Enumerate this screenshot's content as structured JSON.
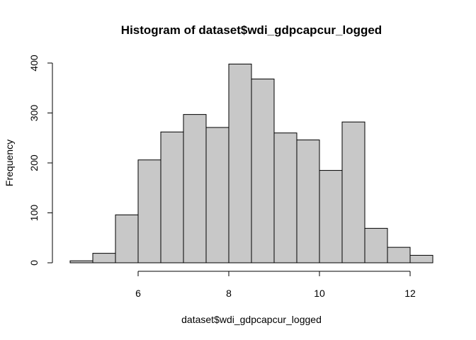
{
  "chart_data": {
    "type": "bar",
    "title": "Histogram of dataset$wdi_gdpcapcur_logged",
    "xlabel": "dataset$wdi_gdpcapcur_logged",
    "ylabel": "Frequency",
    "bins": [
      {
        "start": 4.5,
        "end": 5.0,
        "count": 4
      },
      {
        "start": 5.0,
        "end": 5.5,
        "count": 19
      },
      {
        "start": 5.5,
        "end": 6.0,
        "count": 96
      },
      {
        "start": 6.0,
        "end": 6.5,
        "count": 206
      },
      {
        "start": 6.5,
        "end": 7.0,
        "count": 262
      },
      {
        "start": 7.0,
        "end": 7.5,
        "count": 297
      },
      {
        "start": 7.5,
        "end": 8.0,
        "count": 271
      },
      {
        "start": 8.0,
        "end": 8.5,
        "count": 398
      },
      {
        "start": 8.5,
        "end": 9.0,
        "count": 368
      },
      {
        "start": 9.0,
        "end": 9.5,
        "count": 260
      },
      {
        "start": 9.5,
        "end": 10.0,
        "count": 246
      },
      {
        "start": 10.0,
        "end": 10.5,
        "count": 185
      },
      {
        "start": 10.5,
        "end": 11.0,
        "count": 282
      },
      {
        "start": 11.0,
        "end": 11.5,
        "count": 69
      },
      {
        "start": 11.5,
        "end": 12.0,
        "count": 31
      },
      {
        "start": 12.0,
        "end": 12.5,
        "count": 15
      }
    ],
    "xticks": [
      6,
      8,
      10,
      12
    ],
    "yticks": [
      0,
      100,
      200,
      300,
      400
    ],
    "xlim": [
      4.5,
      12.5
    ],
    "ylim": [
      0,
      400
    ],
    "grid": false,
    "bar_color": "#c8c8c8",
    "edge_color": "#000000"
  }
}
